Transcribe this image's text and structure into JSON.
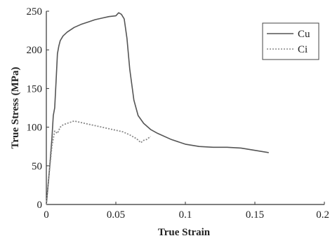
{
  "chart_data": {
    "type": "line",
    "title": "",
    "xlabel": "True Strain",
    "ylabel": "True Stress (MPa)",
    "xlim": [
      0,
      0.2
    ],
    "ylim": [
      0,
      250
    ],
    "xticks": [
      0,
      0.05,
      0.1,
      0.15,
      0.2
    ],
    "xtick_labels": [
      "0",
      "0.05",
      "0.1",
      "0.15",
      "0.2"
    ],
    "yticks": [
      0,
      50,
      100,
      150,
      200,
      250
    ],
    "ytick_labels": [
      "0",
      "50",
      "100",
      "150",
      "200",
      "250"
    ],
    "grid": false,
    "legend_position": "top-right",
    "series": [
      {
        "name": "Cu",
        "style": "solid",
        "color": "#555555",
        "x": [
          0,
          0.002,
          0.004,
          0.005,
          0.006,
          0.007,
          0.008,
          0.009,
          0.01,
          0.012,
          0.015,
          0.02,
          0.025,
          0.03,
          0.035,
          0.04,
          0.045,
          0.05,
          0.052,
          0.054,
          0.056,
          0.058,
          0.06,
          0.063,
          0.066,
          0.07,
          0.075,
          0.08,
          0.09,
          0.1,
          0.11,
          0.12,
          0.13,
          0.14,
          0.15,
          0.16
        ],
        "y": [
          0,
          40,
          85,
          115,
          125,
          160,
          195,
          205,
          212,
          218,
          223,
          229,
          233,
          236,
          239,
          241,
          243,
          244,
          248,
          246,
          240,
          215,
          175,
          135,
          115,
          105,
          97,
          92,
          84,
          78,
          75,
          74,
          74,
          73,
          70,
          67
        ]
      },
      {
        "name": "Ci",
        "style": "dotted",
        "color": "#888888",
        "x": [
          0,
          0.002,
          0.004,
          0.006,
          0.008,
          0.01,
          0.012,
          0.015,
          0.02,
          0.025,
          0.03,
          0.035,
          0.04,
          0.045,
          0.05,
          0.055,
          0.06,
          0.065,
          0.068,
          0.07,
          0.072,
          0.075
        ],
        "y": [
          0,
          40,
          75,
          95,
          92,
          100,
          103,
          105,
          108,
          106,
          104,
          102,
          100,
          98,
          96,
          94,
          90,
          85,
          80,
          83,
          84,
          88
        ]
      }
    ]
  }
}
